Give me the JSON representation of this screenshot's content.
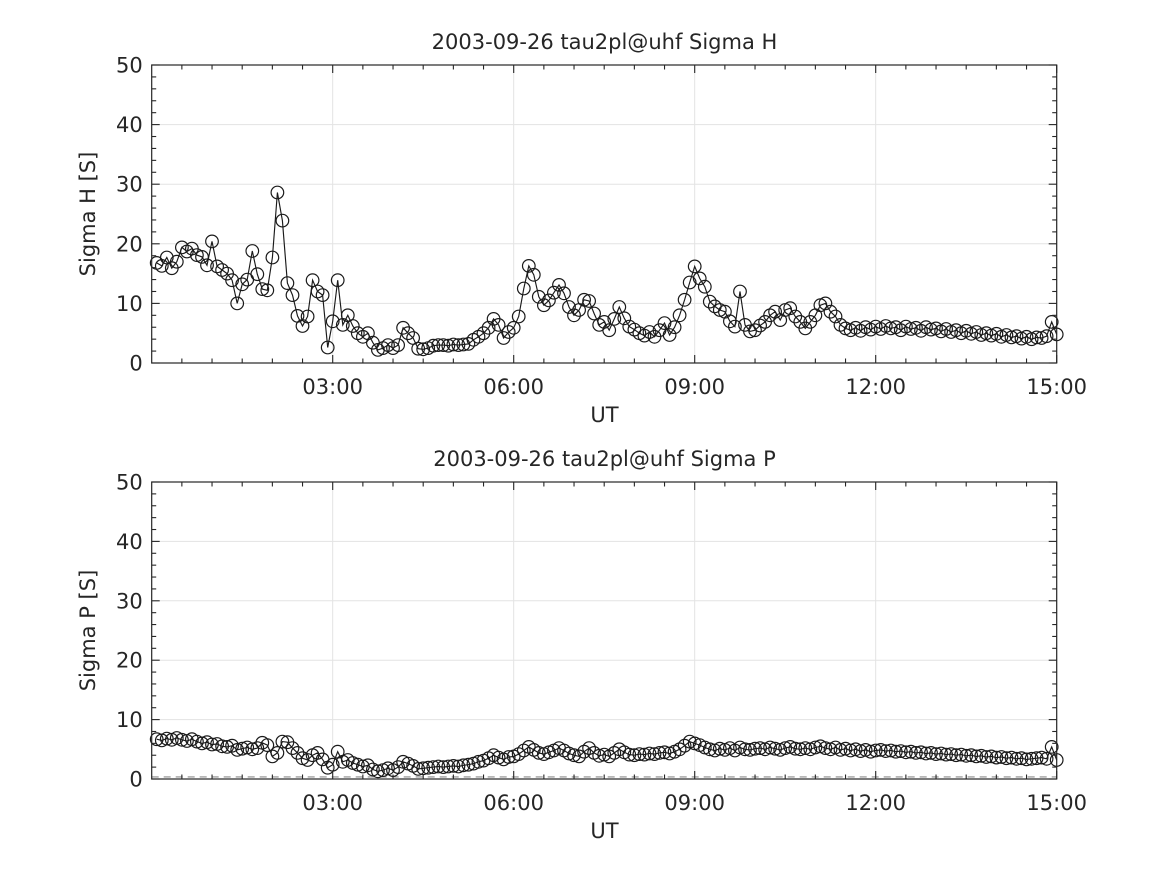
{
  "figure": {
    "background": "#ffffff",
    "text_color": "#262626",
    "grid_color": "#e3e3e3",
    "axis_color": "#262626",
    "series_color": "#1a1a1a",
    "dashed_line_color": "#8c8c8c"
  },
  "chart_data": [
    {
      "type": "line",
      "title": "2003-09-26  tau2pl@uhf Sigma H",
      "xlabel": "UT",
      "ylabel": "Sigma H [S]",
      "marker": "open-circle",
      "legend": "none",
      "grid": "on",
      "xlim_min": [
        0,
        900
      ],
      "ylim": [
        0,
        50
      ],
      "xticks": [
        {
          "min": 180,
          "label": "03:00"
        },
        {
          "min": 360,
          "label": "06:00"
        },
        {
          "min": 540,
          "label": "09:00"
        },
        {
          "min": 720,
          "label": "12:00"
        },
        {
          "min": 900,
          "label": "15:00"
        }
      ],
      "yticks": [
        0,
        10,
        20,
        30,
        40,
        50
      ],
      "x_minor_step_min": 30,
      "y_minor_step": 2,
      "x_start_min": 5,
      "x_step_min": 5,
      "values": [
        16.8,
        16.3,
        17.7,
        15.9,
        17.0,
        19.4,
        18.7,
        19.2,
        18.1,
        17.8,
        16.4,
        20.4,
        16.2,
        15.6,
        15.0,
        13.9,
        10.0,
        13.2,
        14.0,
        18.8,
        14.9,
        12.4,
        12.2,
        17.7,
        28.6,
        23.9,
        13.4,
        11.4,
        7.9,
        6.2,
        7.8,
        13.9,
        12.0,
        11.4,
        2.6,
        7.0,
        13.9,
        6.4,
        8.0,
        6.2,
        5.0,
        4.4,
        5.0,
        3.4,
        2.2,
        2.5,
        3.0,
        2.5,
        3.0,
        5.9,
        5.0,
        4.2,
        2.4,
        2.3,
        2.5,
        2.9,
        3.0,
        3.0,
        2.9,
        3.1,
        3.0,
        3.1,
        3.2,
        3.9,
        4.4,
        5.0,
        5.9,
        7.4,
        6.4,
        4.2,
        5.2,
        5.9,
        7.8,
        12.5,
        16.3,
        14.8,
        11.1,
        9.7,
        10.5,
        11.8,
        13.1,
        11.7,
        9.4,
        8.0,
        8.9,
        10.6,
        10.4,
        8.3,
        6.4,
        6.9,
        5.5,
        7.4,
        9.4,
        7.5,
        6.1,
        5.6,
        5.0,
        4.6,
        5.2,
        4.4,
        5.5,
        6.7,
        4.7,
        6.0,
        8.0,
        10.6,
        13.5,
        16.2,
        14.2,
        12.8,
        10.3,
        9.5,
        8.9,
        8.6,
        7.0,
        6.1,
        12.0,
        6.4,
        5.3,
        5.5,
        6.3,
        6.9,
        8.0,
        8.6,
        7.2,
        8.9,
        9.2,
        7.8,
        6.9,
        5.8,
        6.9,
        8.0,
        9.7,
        10.0,
        8.6,
        7.8,
        6.4,
        5.8,
        5.5,
        5.9,
        5.4,
        6.0,
        5.6,
        6.1,
        5.7,
        6.2,
        5.8,
        6.0,
        5.5,
        6.1,
        5.7,
        5.9,
        5.4,
        6.0,
        5.6,
        5.8,
        5.3,
        5.7,
        5.2,
        5.5,
        5.0,
        5.4,
        4.9,
        5.2,
        4.7,
        5.0,
        4.6,
        4.9,
        4.4,
        4.7,
        4.3,
        4.5,
        4.1,
        4.4,
        4.0,
        4.3,
        4.2,
        4.5,
        6.9,
        4.8
      ]
    },
    {
      "type": "line",
      "title": "2003-09-26  tau2pl@uhf Sigma P",
      "xlabel": "UT",
      "ylabel": "Sigma P [S]",
      "marker": "open-circle",
      "legend": "none",
      "grid": "on",
      "xlim_min": [
        0,
        900
      ],
      "ylim": [
        0,
        50
      ],
      "xticks": [
        {
          "min": 180,
          "label": "03:00"
        },
        {
          "min": 360,
          "label": "06:00"
        },
        {
          "min": 540,
          "label": "09:00"
        },
        {
          "min": 720,
          "label": "12:00"
        },
        {
          "min": 900,
          "label": "15:00"
        }
      ],
      "yticks": [
        0,
        10,
        20,
        30,
        40,
        50
      ],
      "x_minor_step_min": 30,
      "y_minor_step": 2,
      "x_start_min": 5,
      "x_step_min": 5,
      "dashed_baseline_y": 0.35,
      "values": [
        6.7,
        6.5,
        6.8,
        6.6,
        6.9,
        6.6,
        6.4,
        6.7,
        6.3,
        6.0,
        6.2,
        5.8,
        5.9,
        5.5,
        5.4,
        5.6,
        4.9,
        5.1,
        5.3,
        5.0,
        5.2,
        6.1,
        5.7,
        3.8,
        4.4,
        6.3,
        6.2,
        5.2,
        4.4,
        3.5,
        3.2,
        4.0,
        4.4,
        3.3,
        1.9,
        2.4,
        4.6,
        2.9,
        3.2,
        2.7,
        2.4,
        2.1,
        2.3,
        1.6,
        1.3,
        1.5,
        1.8,
        1.5,
        2.0,
        2.9,
        2.6,
        2.2,
        1.7,
        1.8,
        1.9,
        2.0,
        2.1,
        2.0,
        2.1,
        2.2,
        2.1,
        2.3,
        2.4,
        2.6,
        2.9,
        3.1,
        3.5,
        4.0,
        3.6,
        3.3,
        3.7,
        3.8,
        4.2,
        4.8,
        5.4,
        4.9,
        4.4,
        4.2,
        4.5,
        4.8,
        5.2,
        4.8,
        4.3,
        4.0,
        3.8,
        4.6,
        5.2,
        4.4,
        3.9,
        4.1,
        3.8,
        4.4,
        5.0,
        4.5,
        4.1,
        4.0,
        4.2,
        4.1,
        4.3,
        4.2,
        4.4,
        4.5,
        4.3,
        4.6,
        5.0,
        5.6,
        6.3,
        6.0,
        5.7,
        5.3,
        5.0,
        4.8,
        5.1,
        4.9,
        5.2,
        4.8,
        5.3,
        5.0,
        4.9,
        5.1,
        5.2,
        5.0,
        5.3,
        5.1,
        4.9,
        5.2,
        5.4,
        5.1,
        5.0,
        5.2,
        5.0,
        5.3,
        5.5,
        5.2,
        5.0,
        5.3,
        4.9,
        5.1,
        4.8,
        5.0,
        4.7,
        4.9,
        4.6,
        4.8,
        4.9,
        4.7,
        4.8,
        4.6,
        4.7,
        4.5,
        4.6,
        4.4,
        4.5,
        4.3,
        4.4,
        4.2,
        4.3,
        4.1,
        4.2,
        4.0,
        4.1,
        3.9,
        4.0,
        3.8,
        3.9,
        3.7,
        3.8,
        3.6,
        3.7,
        3.5,
        3.6,
        3.4,
        3.5,
        3.3,
        3.4,
        3.5,
        3.6,
        3.4,
        5.4,
        3.2
      ]
    }
  ]
}
